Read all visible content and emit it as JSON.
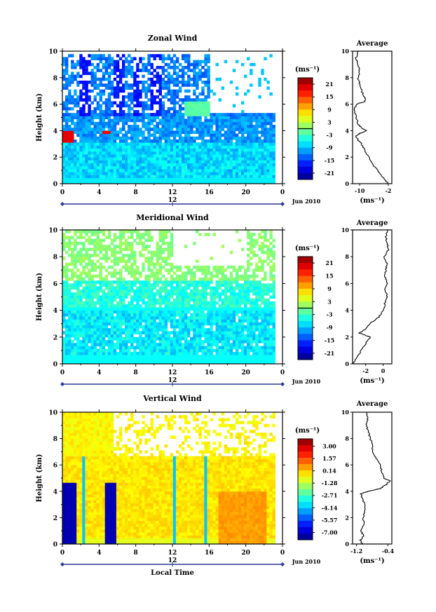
{
  "chart_data": [
    {
      "type": "heatmap",
      "title": "Zonal Wind",
      "ylabel": "Height (km)",
      "ylim": [
        0,
        10
      ],
      "yticks": [
        "0",
        "2",
        "4",
        "6",
        "8",
        "10"
      ],
      "xlim": [
        0,
        24
      ],
      "xticks": [
        "0",
        "4",
        "8",
        "12",
        "16",
        "20",
        "0"
      ],
      "date_tick": "12",
      "date_label": "Jun 2010",
      "colorbar": {
        "unit": "(ms⁻¹)",
        "range": [
          -24,
          24
        ],
        "ticks": [
          {
            "value": 21,
            "label": "21"
          },
          {
            "value": 15,
            "label": "15"
          },
          {
            "value": 9,
            "label": "9"
          },
          {
            "value": 3,
            "label": "3"
          },
          {
            "value": -3,
            "label": "-3"
          },
          {
            "value": -9,
            "label": "-9"
          },
          {
            "value": -15,
            "label": "-15"
          },
          {
            "value": -21,
            "label": "-21"
          }
        ],
        "zero_line": 0
      },
      "average": {
        "title": "Average",
        "xlabel": "(ms⁻¹)",
        "xlim": [
          -12,
          -1
        ],
        "xticks": [
          {
            "value": -10,
            "label": "-10"
          },
          {
            "value": -2,
            "label": "-2"
          }
        ],
        "height": [
          0,
          0.5,
          1,
          1.5,
          2,
          2.5,
          3,
          3.3,
          3.6,
          3.8,
          4,
          4.2,
          4.5,
          5,
          5.5,
          6,
          6.2,
          6.5,
          7,
          7.5,
          8,
          8.5,
          9,
          9.5,
          10
        ],
        "values": [
          -2,
          -3.5,
          -5,
          -6.5,
          -7.5,
          -8.5,
          -9.5,
          -10.5,
          -11,
          -10,
          -8,
          -9.5,
          -10.5,
          -11,
          -11.5,
          -11,
          -8.5,
          -8.5,
          -9.5,
          -10,
          -10.5,
          -10,
          -10.5,
          -11,
          -10.5
        ]
      }
    },
    {
      "type": "heatmap",
      "title": "Meridional Wind",
      "ylabel": "Height (km)",
      "ylim": [
        0,
        10
      ],
      "yticks": [
        "0",
        "2",
        "4",
        "6",
        "8",
        "10"
      ],
      "xlim": [
        0,
        24
      ],
      "xticks": [
        "0",
        "4",
        "8",
        "12",
        "16",
        "20",
        "0"
      ],
      "date_tick": "12",
      "date_label": "Jun 2010",
      "colorbar": {
        "unit": "(ms⁻¹)",
        "range": [
          -24,
          24
        ],
        "ticks": [
          {
            "value": 21,
            "label": "21"
          },
          {
            "value": 15,
            "label": "15"
          },
          {
            "value": 9,
            "label": "9"
          },
          {
            "value": 3,
            "label": "3"
          },
          {
            "value": -3,
            "label": "-3"
          },
          {
            "value": -9,
            "label": "-9"
          },
          {
            "value": -15,
            "label": "-15"
          },
          {
            "value": -21,
            "label": "-21"
          }
        ],
        "zero_line": 0
      },
      "average": {
        "title": "Average",
        "xlabel": "(ms⁻¹)",
        "xlim": [
          -3.5,
          1
        ],
        "xticks": [
          {
            "value": -2,
            "label": "-2"
          },
          {
            "value": 0,
            "label": "0"
          }
        ],
        "height": [
          0,
          0.5,
          1,
          1.5,
          2,
          2.3,
          2.6,
          3,
          3.5,
          4,
          4.5,
          5,
          5.5,
          6,
          6.5,
          7,
          7.5,
          8,
          8.5,
          9,
          9.5,
          10
        ],
        "values": [
          -3.5,
          -3,
          -2.5,
          -2,
          -1.5,
          -2.7,
          -2,
          -1.5,
          -0.5,
          0,
          0.2,
          0.5,
          0.2,
          0.5,
          0.2,
          0.3,
          0.5,
          0.1,
          0.6,
          0.5,
          0.3,
          0.5
        ]
      }
    },
    {
      "type": "heatmap",
      "title": "Vertical Wind",
      "ylabel": "Height (km)",
      "xlabel": "Local Time",
      "ylim": [
        0,
        10
      ],
      "yticks": [
        "0",
        "2",
        "4",
        "6",
        "8",
        "10"
      ],
      "xlim": [
        0,
        24
      ],
      "xticks": [
        "0",
        "4",
        "8",
        "12",
        "16",
        "20",
        "0"
      ],
      "date_tick": "12",
      "date_label": "Jun 2010",
      "colorbar": {
        "unit": "(ms⁻¹)",
        "range": [
          -7.85,
          3.85
        ],
        "ticks": [
          {
            "value": 3.0,
            "label": "3.00"
          },
          {
            "value": 1.57,
            "label": "1.57"
          },
          {
            "value": 0.14,
            "label": "0.14"
          },
          {
            "value": -1.28,
            "label": "-1.28"
          },
          {
            "value": -2.71,
            "label": "-2.71"
          },
          {
            "value": -4.14,
            "label": "-4.14"
          },
          {
            "value": -5.57,
            "label": "-5.57"
          },
          {
            "value": -7.0,
            "label": "-7.00"
          }
        ]
      },
      "average": {
        "title": "Average",
        "xlabel": "(ms⁻¹)",
        "xlim": [
          -1.3,
          -0.3
        ],
        "xticks": [
          {
            "value": -1.2,
            "label": "-1.2"
          },
          {
            "value": -0.4,
            "label": "-0.4"
          }
        ],
        "height": [
          0,
          0.3,
          0.6,
          1,
          1.5,
          2,
          2.5,
          3,
          3.5,
          3.8,
          4,
          4.2,
          4.5,
          4.8,
          5,
          5.5,
          6,
          6.5,
          7,
          7.5,
          8,
          8.5,
          9,
          9.5,
          10
        ],
        "values": [
          -1.05,
          -1.1,
          -1.02,
          -1.08,
          -1.0,
          -1.03,
          -0.98,
          -1.0,
          -1.05,
          -1.1,
          -0.9,
          -0.6,
          -0.45,
          -0.35,
          -0.5,
          -0.55,
          -0.6,
          -0.7,
          -0.8,
          -0.8,
          -0.85,
          -0.9,
          -0.95,
          -0.92,
          -0.95
        ]
      }
    }
  ]
}
